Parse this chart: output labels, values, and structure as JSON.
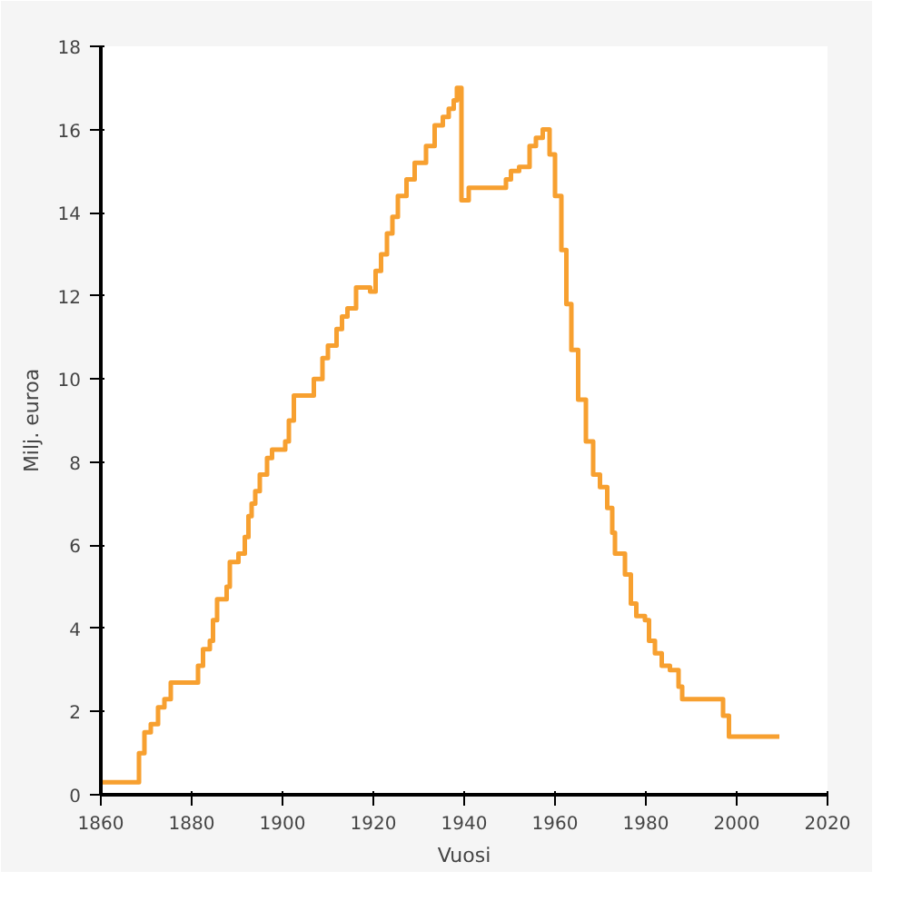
{
  "chart_data": {
    "type": "step",
    "xlabel": "Vuosi",
    "ylabel": "Milj. euroa",
    "x": [
      1860,
      1868.4,
      1869.6,
      1871,
      1872.6,
      1874,
      1875.4,
      1881.4,
      1882.5,
      1884,
      1884.7,
      1885.6,
      1887.7,
      1888.4,
      1890.3,
      1891.7,
      1892.5,
      1893.2,
      1894,
      1895,
      1896.6,
      1897.7,
      1900.6,
      1901.4,
      1902.5,
      1906.9,
      1908.8,
      1910,
      1911.9,
      1913.1,
      1914.3,
      1916.2,
      1919.3,
      1920.5,
      1921.7,
      1923,
      1924.2,
      1925.4,
      1927.3,
      1929.1,
      1931.6,
      1933.5,
      1935.3,
      1936.6,
      1937.7,
      1938.4,
      1939.4,
      1941,
      1949.2,
      1950.3,
      1952.1,
      1954.4,
      1955.8,
      1957.3,
      1958.8,
      1960,
      1961.4,
      1962.5,
      1963.6,
      1965.1,
      1966.8,
      1968.4,
      1969.9,
      1971.5,
      1972.6,
      1973.2,
      1975.4,
      1976.7,
      1977.9,
      1979.8,
      1980.7,
      1982,
      1983.5,
      1985.3,
      1987.2,
      1988,
      1997,
      1998.3,
      2009.4
    ],
    "series": [
      {
        "color": "#f7a030",
        "values": [
          0.3,
          1.0,
          1.5,
          1.7,
          2.1,
          2.3,
          2.7,
          3.1,
          3.5,
          3.7,
          4.2,
          4.7,
          5.0,
          5.6,
          5.8,
          6.2,
          6.7,
          7.0,
          7.3,
          7.7,
          8.1,
          8.3,
          8.5,
          9.0,
          9.6,
          10.0,
          10.5,
          10.8,
          11.2,
          11.5,
          11.7,
          12.2,
          12.1,
          12.6,
          13.0,
          13.5,
          13.9,
          14.4,
          14.8,
          15.2,
          15.6,
          16.1,
          16.3,
          16.5,
          16.7,
          17.0,
          14.3,
          14.6,
          14.8,
          15.0,
          15.1,
          15.6,
          15.8,
          16.0,
          15.4,
          14.4,
          13.1,
          11.8,
          10.7,
          9.5,
          8.5,
          7.7,
          7.4,
          6.9,
          6.3,
          5.8,
          5.3,
          4.6,
          4.3,
          4.2,
          3.7,
          3.4,
          3.1,
          3.0,
          2.6,
          2.3,
          1.9,
          1.4,
          1.4
        ]
      }
    ],
    "xlim": [
      1860,
      2020
    ],
    "xticks": [
      1860,
      1880,
      1900,
      1920,
      1940,
      1960,
      1980,
      2000,
      2020
    ],
    "ylim": [
      0,
      18
    ],
    "yticks": [
      0,
      2,
      4,
      6,
      8,
      10,
      12,
      14,
      16,
      18
    ],
    "grid": false
  }
}
